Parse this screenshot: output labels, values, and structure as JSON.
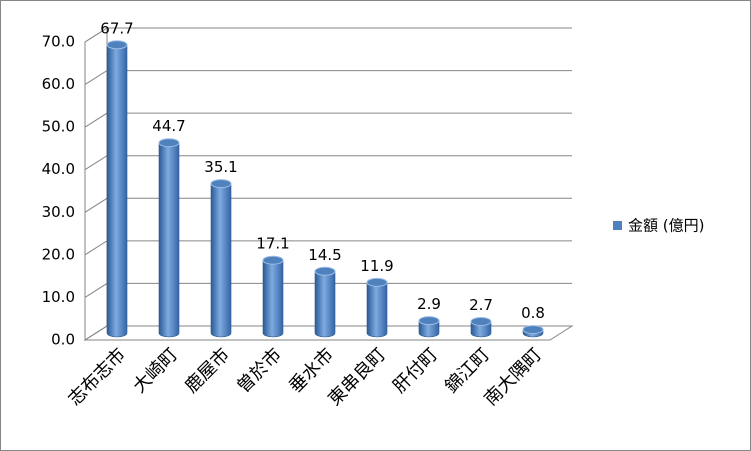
{
  "chart_data": {
    "type": "bar3d",
    "categories": [
      "志布志市",
      "大崎町",
      "鹿屋市",
      "曽於市",
      "垂水市",
      "東串良町",
      "肝付町",
      "錦江町",
      "南大隅町"
    ],
    "series": [
      {
        "name": "金額 (億円)",
        "color": "#4f81bd",
        "values": [
          67.7,
          44.7,
          35.1,
          17.1,
          14.5,
          11.9,
          2.9,
          2.7,
          0.8
        ]
      }
    ],
    "ylim": [
      0,
      70
    ],
    "yticks": [
      {
        "value": 0,
        "label": "0.0"
      },
      {
        "value": 10,
        "label": "10.0"
      },
      {
        "value": 20,
        "label": "20.0"
      },
      {
        "value": 30,
        "label": "30.0"
      },
      {
        "value": 40,
        "label": "40.0"
      },
      {
        "value": 50,
        "label": "50.0"
      },
      {
        "value": 60,
        "label": "60.0"
      },
      {
        "value": 70,
        "label": "70.0"
      }
    ],
    "grid": true,
    "legend": "right"
  }
}
